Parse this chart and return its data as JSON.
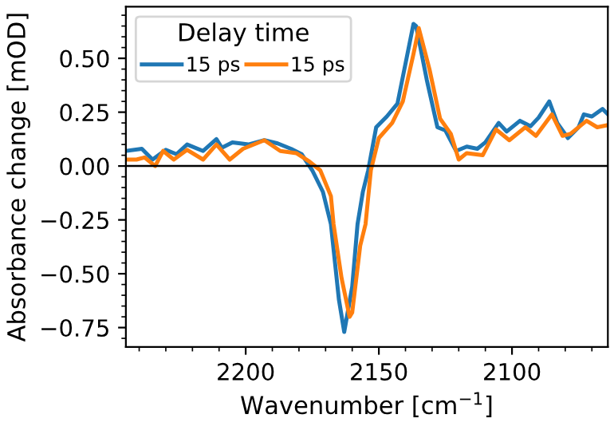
{
  "chart_data": {
    "type": "line",
    "xlabel": "Wavenumber [cm$^{−1}$]",
    "ylabel": "Absorbance change [mOD]",
    "legend_title": "Delay time",
    "legend": "top left",
    "grid": false,
    "xlim": [
      2245,
      2064
    ],
    "ylim": [
      -0.84,
      0.74
    ],
    "xticks": [
      2200,
      2150,
      2100,
      {
        "value": 2240,
        "label": null
      },
      {
        "value": 2230,
        "label": null
      },
      {
        "value": 2220,
        "label": null
      },
      {
        "value": 2210,
        "label": null
      },
      {
        "value": 2190,
        "label": null
      },
      {
        "value": 2180,
        "label": null
      },
      {
        "value": 2170,
        "label": null
      },
      {
        "value": 2160,
        "label": null
      },
      {
        "value": 2140,
        "label": null
      },
      {
        "value": 2130,
        "label": null
      },
      {
        "value": 2120,
        "label": null
      },
      {
        "value": 2110,
        "label": null
      },
      {
        "value": 2090,
        "label": null
      },
      {
        "value": 2080,
        "label": null
      },
      {
        "value": 2070,
        "label": null
      }
    ],
    "yticks": [
      {
        "value": -0.75,
        "label": "−0.75"
      },
      {
        "value": -0.5,
        "label": "−0.50"
      },
      {
        "value": -0.25,
        "label": "−0.25"
      },
      {
        "value": 0,
        "label": "0.00"
      },
      {
        "value": 0.25,
        "label": "0.25"
      },
      {
        "value": 0.5,
        "label": "0.50"
      },
      {
        "value": -0.8,
        "label": null
      },
      {
        "value": -0.7,
        "label": null
      },
      {
        "value": -0.65,
        "label": null
      },
      {
        "value": -0.6,
        "label": null
      },
      {
        "value": -0.55,
        "label": null
      },
      {
        "value": -0.45,
        "label": null
      },
      {
        "value": -0.4,
        "label": null
      },
      {
        "value": -0.35,
        "label": null
      },
      {
        "value": -0.3,
        "label": null
      },
      {
        "value": -0.2,
        "label": null
      },
      {
        "value": -0.15,
        "label": null
      },
      {
        "value": -0.1,
        "label": null
      },
      {
        "value": -0.05,
        "label": null
      },
      {
        "value": 0.05,
        "label": null
      },
      {
        "value": 0.1,
        "label": null
      },
      {
        "value": 0.15,
        "label": null
      },
      {
        "value": 0.2,
        "label": null
      },
      {
        "value": 0.3,
        "label": null
      },
      {
        "value": 0.35,
        "label": null
      },
      {
        "value": 0.4,
        "label": null
      },
      {
        "value": 0.45,
        "label": null
      },
      {
        "value": 0.55,
        "label": null
      },
      {
        "value": 0.6,
        "label": null
      },
      {
        "value": 0.65,
        "label": null
      },
      {
        "value": 0.7,
        "label": null
      }
    ],
    "ref_lines": [
      {
        "axis": "y",
        "value": 0,
        "color": "#000000"
      }
    ],
    "series": [
      {
        "name": "15 ps",
        "color": "#1f77b4",
        "x": [
          2245,
          2239,
          2235,
          2230,
          2226,
          2222,
          2216,
          2211,
          2209,
          2205,
          2199,
          2193,
          2188,
          2183,
          2179,
          2175,
          2171,
          2168,
          2165,
          2163,
          2160,
          2158,
          2156,
          2154,
          2151,
          2147,
          2143,
          2137,
          2136,
          2132,
          2128,
          2125,
          2121,
          2117,
          2113,
          2110,
          2105,
          2102,
          2097,
          2093,
          2090,
          2086,
          2083,
          2079,
          2075,
          2073,
          2070,
          2066,
          2064
        ],
        "values": [
          0.07,
          0.08,
          0.03,
          0.075,
          0.055,
          0.1,
          0.07,
          0.125,
          0.085,
          0.11,
          0.1,
          0.12,
          0.105,
          0.08,
          0.055,
          -0.02,
          -0.12,
          -0.27,
          -0.62,
          -0.77,
          -0.56,
          -0.27,
          -0.12,
          -0.02,
          0.18,
          0.23,
          0.29,
          0.66,
          0.65,
          0.4,
          0.18,
          0.165,
          0.07,
          0.09,
          0.08,
          0.11,
          0.2,
          0.16,
          0.21,
          0.185,
          0.225,
          0.3,
          0.2,
          0.13,
          0.18,
          0.24,
          0.23,
          0.265,
          0.24
        ]
      },
      {
        "name": "15 ps",
        "color": "#ff7f0e",
        "x": [
          2245,
          2241,
          2238,
          2234,
          2231,
          2227,
          2222,
          2216,
          2211,
          2206,
          2201,
          2193,
          2187,
          2181,
          2176,
          2172,
          2168,
          2167,
          2164,
          2161,
          2160,
          2157,
          2155,
          2153,
          2150,
          2145,
          2141,
          2137,
          2135,
          2131,
          2127,
          2123,
          2120,
          2117,
          2111,
          2106,
          2101,
          2095,
          2091,
          2085,
          2081,
          2078,
          2072,
          2068,
          2064
        ],
        "values": [
          0.03,
          0.03,
          0.04,
          0.0,
          0.07,
          0.03,
          0.075,
          0.03,
          0.1,
          0.03,
          0.08,
          0.12,
          0.07,
          0.06,
          0.02,
          -0.02,
          -0.14,
          -0.27,
          -0.52,
          -0.7,
          -0.68,
          -0.37,
          -0.27,
          -0.02,
          0.13,
          0.2,
          0.3,
          0.52,
          0.64,
          0.45,
          0.22,
          0.15,
          0.03,
          0.06,
          0.05,
          0.17,
          0.12,
          0.18,
          0.14,
          0.24,
          0.14,
          0.15,
          0.21,
          0.18,
          0.19
        ]
      }
    ]
  }
}
